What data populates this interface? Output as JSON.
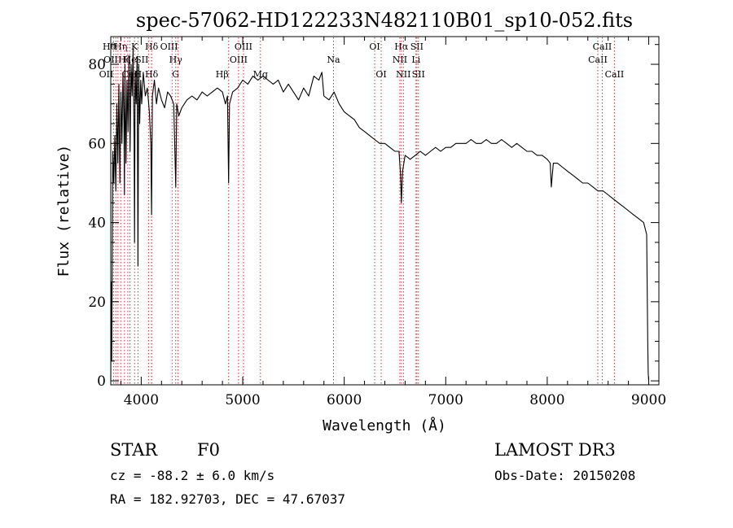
{
  "chart_data": {
    "type": "line",
    "title": "spec-57062-HD122233N482110B01_sp10-052.fits",
    "xlabel": "Wavelength (Å)",
    "ylabel": "Flux (relative)",
    "xlim": [
      3700,
      9100
    ],
    "ylim": [
      -1,
      87
    ],
    "x_ticks": [
      4000,
      5000,
      6000,
      7000,
      8000,
      9000
    ],
    "y_ticks": [
      0,
      20,
      40,
      60,
      80
    ],
    "series": [
      {
        "name": "flux",
        "x": [
          3700,
          3705,
          3710,
          3720,
          3730,
          3740,
          3750,
          3760,
          3770,
          3780,
          3790,
          3800,
          3810,
          3820,
          3830,
          3835,
          3840,
          3850,
          3860,
          3870,
          3880,
          3890,
          3900,
          3910,
          3920,
          3930,
          3934,
          3940,
          3950,
          3960,
          3968,
          3975,
          3985,
          3995,
          4005,
          4020,
          4040,
          4060,
          4080,
          4095,
          4102,
          4110,
          4130,
          4150,
          4170,
          4200,
          4230,
          4260,
          4290,
          4320,
          4340,
          4350,
          4370,
          4400,
          4450,
          4500,
          4550,
          4600,
          4650,
          4700,
          4750,
          4800,
          4830,
          4850,
          4861,
          4870,
          4900,
          4950,
          5000,
          5050,
          5100,
          5150,
          5200,
          5250,
          5300,
          5350,
          5400,
          5450,
          5500,
          5550,
          5600,
          5650,
          5700,
          5750,
          5780,
          5800,
          5850,
          5900,
          5950,
          6000,
          6050,
          6100,
          6150,
          6200,
          6250,
          6300,
          6350,
          6400,
          6450,
          6500,
          6540,
          6555,
          6563,
          6575,
          6600,
          6650,
          6700,
          6750,
          6800,
          6850,
          6900,
          6950,
          7000,
          7050,
          7100,
          7150,
          7200,
          7250,
          7300,
          7350,
          7400,
          7450,
          7500,
          7550,
          7600,
          7650,
          7700,
          7750,
          7800,
          7850,
          7900,
          7950,
          8000,
          8030,
          8040,
          8060,
          8100,
          8150,
          8200,
          8250,
          8300,
          8350,
          8400,
          8450,
          8500,
          8550,
          8600,
          8650,
          8700,
          8750,
          8800,
          8850,
          8900,
          8950,
          8980,
          8990,
          8995,
          9000
        ],
        "y": [
          0,
          25,
          5,
          58,
          50,
          62,
          48,
          70,
          55,
          75,
          50,
          73,
          60,
          78,
          65,
          47,
          80,
          55,
          76,
          63,
          82,
          58,
          80,
          72,
          84,
          60,
          35,
          78,
          70,
          82,
          29,
          80,
          65,
          76,
          70,
          78,
          72,
          74,
          68,
          60,
          42,
          72,
          76,
          70,
          74,
          71,
          69,
          73,
          72,
          70,
          49,
          70,
          67,
          69,
          71,
          72,
          71,
          73,
          72,
          73,
          74,
          73,
          70,
          72,
          50,
          70,
          73,
          74,
          76,
          75,
          77,
          76,
          77,
          76,
          75,
          76,
          73,
          75,
          73,
          71,
          74,
          72,
          77,
          76,
          78,
          72,
          71,
          73,
          70,
          68,
          67,
          66,
          64,
          63,
          62,
          61,
          60,
          60,
          59,
          58,
          58,
          52,
          45,
          53,
          57,
          56,
          57,
          58,
          57,
          58,
          59,
          58,
          59,
          59,
          60,
          60,
          60,
          61,
          60,
          60,
          61,
          60,
          60,
          61,
          60,
          59,
          60,
          59,
          58,
          58,
          57,
          57,
          56,
          55,
          49,
          55,
          55,
          54,
          53,
          52,
          51,
          50,
          50,
          49,
          48,
          48,
          47,
          46,
          45,
          44,
          43,
          42,
          41,
          40,
          37,
          10,
          2,
          0
        ]
      }
    ],
    "spectral_lines": [
      {
        "wl": 3727,
        "label": "OII",
        "row": 3,
        "anchor": "end"
      },
      {
        "wl": 3750,
        "label": "Hθ",
        "row": 1,
        "anchor": "end"
      },
      {
        "wl": 3771,
        "label": "OII",
        "row": 2,
        "anchor": "end"
      },
      {
        "wl": 3798,
        "label": "Hη",
        "row": 1,
        "anchor": "middle"
      },
      {
        "wl": 3835,
        "label": "Hζ",
        "row": 2,
        "anchor": "middle"
      },
      {
        "wl": 3868,
        "label": "Ca",
        "row": 3,
        "anchor": "middle"
      },
      {
        "wl": 3889,
        "label": "He",
        "row": 2,
        "anchor": "middle"
      },
      {
        "wl": 3934,
        "label": "K",
        "row": 1,
        "anchor": "middle"
      },
      {
        "wl": 3968,
        "label": "H",
        "row": 3,
        "anchor": "middle"
      },
      {
        "wl": 4072,
        "label": "SII",
        "row": 2,
        "anchor": "end"
      },
      {
        "wl": 4102,
        "label": "Hδ",
        "row": 1,
        "anchor": "middle"
      },
      {
        "wl": 4102,
        "label": "Hδ",
        "row": 3,
        "anchor": "middle"
      },
      {
        "wl": 4304,
        "label": "G",
        "row": 3,
        "anchor": "start"
      },
      {
        "wl": 4340,
        "label": "Hγ",
        "row": 2,
        "anchor": "middle"
      },
      {
        "wl": 4363,
        "label": "OIII",
        "row": 1,
        "anchor": "end"
      },
      {
        "wl": 4861,
        "label": "Hβ",
        "row": 3,
        "anchor": "end"
      },
      {
        "wl": 4959,
        "label": "OIII",
        "row": 2,
        "anchor": "middle"
      },
      {
        "wl": 5007,
        "label": "OIII",
        "row": 1,
        "anchor": "middle"
      },
      {
        "wl": 5175,
        "label": "Mg",
        "row": 3,
        "anchor": "middle"
      },
      {
        "wl": 5894,
        "label": "Na",
        "row": 2,
        "anchor": "middle"
      },
      {
        "wl": 6300,
        "label": "OI",
        "row": 1,
        "anchor": "middle"
      },
      {
        "wl": 6364,
        "label": "OI",
        "row": 3,
        "anchor": "middle"
      },
      {
        "wl": 6548,
        "label": "NII",
        "row": 2,
        "anchor": "middle"
      },
      {
        "wl": 6563,
        "label": "Hα",
        "row": 1,
        "anchor": "middle"
      },
      {
        "wl": 6583,
        "label": "NII",
        "row": 3,
        "anchor": "middle"
      },
      {
        "wl": 6707,
        "label": "Li",
        "row": 2,
        "anchor": "middle"
      },
      {
        "wl": 6716,
        "label": "SII",
        "row": 1,
        "anchor": "middle"
      },
      {
        "wl": 6731,
        "label": "SII",
        "row": 3,
        "anchor": "middle"
      },
      {
        "wl": 8498,
        "label": "CaII",
        "row": 2,
        "anchor": "middle"
      },
      {
        "wl": 8542,
        "label": "CaII",
        "row": 1,
        "anchor": "middle"
      },
      {
        "wl": 8662,
        "label": "CaII",
        "row": 3,
        "anchor": "middle"
      }
    ]
  },
  "info": {
    "object_class": "STAR",
    "subclass": "F0",
    "survey": "LAMOST DR3",
    "redshift": "cz = -88.2 ± 6.0 km/s",
    "obs_date": "Obs-Date: 20150208",
    "coords": "RA = 182.92703, DEC =  47.67037"
  }
}
